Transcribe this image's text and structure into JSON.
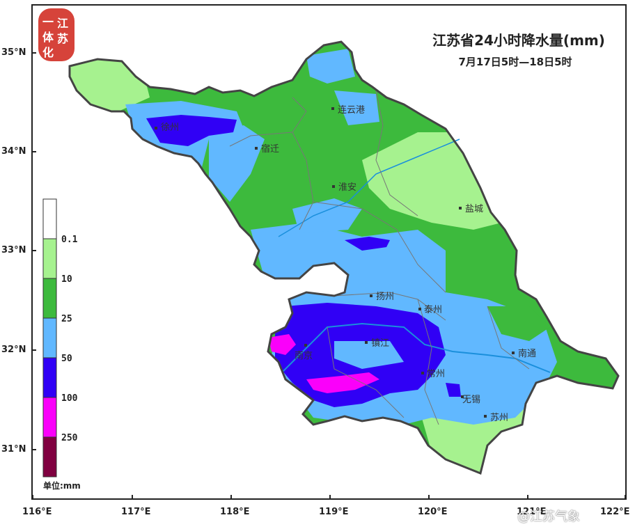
{
  "title": "江苏省24小时降水量(mm)",
  "subtitle": "7月17日5时—18日5时",
  "logo": {
    "text_chars": [
      "江",
      "苏",
      "一",
      "体",
      "化"
    ],
    "color": "#d6433a"
  },
  "watermark": "@江苏气象",
  "latitude_ticks": [
    "35°N",
    "34°N",
    "33°N",
    "32°N",
    "31°N"
  ],
  "longitude_ticks": [
    "116°E",
    "117°E",
    "118°E",
    "119°E",
    "120°E",
    "121°E",
    "122°E"
  ],
  "legend": {
    "unit": "单位:mm",
    "thresholds": [
      "0.1",
      "10",
      "25",
      "50",
      "100",
      "250"
    ],
    "colors": [
      "#ffffff",
      "#a6f28f",
      "#3dba3d",
      "#61b8ff",
      "#3000f5",
      "#fa00fa",
      "#800040"
    ]
  },
  "cities": [
    {
      "name": "徐州"
    },
    {
      "name": "连云港"
    },
    {
      "name": "宿迁"
    },
    {
      "name": "淮安"
    },
    {
      "name": "盐城"
    },
    {
      "name": "扬州"
    },
    {
      "name": "泰州"
    },
    {
      "name": "南京"
    },
    {
      "name": "镇江"
    },
    {
      "name": "常州"
    },
    {
      "name": "南通"
    },
    {
      "name": "无锡"
    },
    {
      "name": "苏州"
    }
  ]
}
